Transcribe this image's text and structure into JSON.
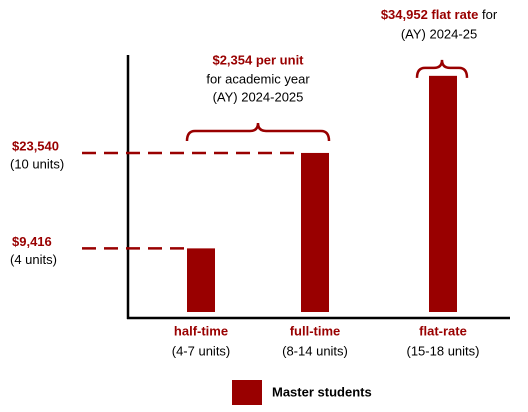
{
  "chart_data": {
    "type": "bar",
    "categories": [
      "half-time",
      "full-time",
      "flat-rate"
    ],
    "category_notes": [
      "(4-7 units)",
      "(8-14 units)",
      "(15-18 units)"
    ],
    "series": [
      {
        "name": "Master students",
        "color": "#990000",
        "values": [
          9416,
          23540,
          34952
        ],
        "value_labels": [
          "$9,416",
          "$23,540",
          "$34,952 flat rate"
        ],
        "value_notes": [
          "(4 units)",
          "(10 units)",
          "for"
        ]
      }
    ],
    "annotations": [
      {
        "title": "$2,354 per unit",
        "lines": [
          "for academic year",
          "(AY) 2024-2025"
        ]
      },
      {
        "lines": [
          "(AY) 2024-25"
        ]
      }
    ],
    "ylim": [
      0,
      37000
    ]
  }
}
